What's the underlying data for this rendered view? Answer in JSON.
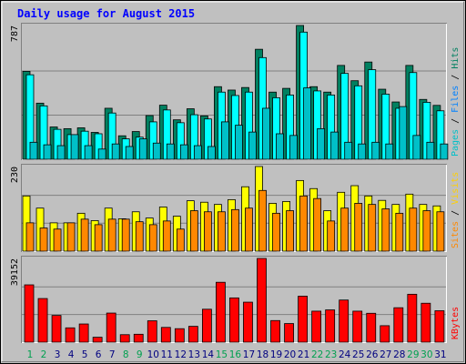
{
  "title": "Daily usage for August 2015",
  "colors": {
    "background": "#c0c0c0",
    "pages": "#00c0c8",
    "files": "#00ffff",
    "hits": "#008060",
    "visits": "#ffff00",
    "sites": "#ff8800",
    "kbytes": "#ff0000",
    "title": "#0000ff",
    "weekend_day": "#00a050",
    "weekday_day": "#000080"
  },
  "legend": {
    "panel1": [
      "Pages",
      "Files",
      "Hits"
    ],
    "panel2": [
      "Sites",
      "Visits"
    ],
    "panel3": [
      "KBytes"
    ]
  },
  "chart_data": [
    {
      "type": "bar",
      "panel": "hits-files-pages",
      "max_label": "787",
      "ylim": [
        0,
        787
      ],
      "grid": true,
      "categories": [
        "1",
        "2",
        "3",
        "4",
        "5",
        "6",
        "7",
        "8",
        "9",
        "10",
        "11",
        "12",
        "13",
        "14",
        "15",
        "16",
        "17",
        "18",
        "19",
        "20",
        "21",
        "22",
        "23",
        "24",
        "25",
        "26",
        "27",
        "28",
        "29",
        "30",
        "31"
      ],
      "series": [
        {
          "name": "Hits",
          "values": [
            517,
            330,
            190,
            180,
            185,
            158,
            300,
            138,
            163,
            257,
            318,
            232,
            297,
            255,
            427,
            407,
            422,
            647,
            395,
            417,
            787,
            427,
            395,
            552,
            462,
            572,
            412,
            337,
            552,
            352,
            317
          ]
        },
        {
          "name": "Files",
          "values": [
            497,
            314,
            176,
            145,
            165,
            150,
            272,
            120,
            130,
            220,
            290,
            215,
            262,
            237,
            395,
            375,
            395,
            598,
            362,
            378,
            748,
            402,
            378,
            505,
            432,
            527,
            383,
            300,
            510,
            335,
            285
          ]
        },
        {
          "name": "Pages",
          "values": [
            100,
            85,
            80,
            145,
            80,
            60,
            90,
            75,
            120,
            95,
            90,
            85,
            80,
            75,
            220,
            200,
            160,
            300,
            150,
            140,
            420,
            180,
            160,
            100,
            90,
            100,
            90,
            310,
            140,
            100,
            90
          ]
        }
      ]
    },
    {
      "type": "bar",
      "panel": "visits-sites",
      "max_label": "230",
      "ylim": [
        0,
        230
      ],
      "grid": true,
      "categories": [
        "1",
        "2",
        "3",
        "4",
        "5",
        "6",
        "7",
        "8",
        "9",
        "10",
        "11",
        "12",
        "13",
        "14",
        "15",
        "16",
        "17",
        "18",
        "19",
        "20",
        "21",
        "22",
        "23",
        "24",
        "25",
        "26",
        "27",
        "28",
        "29",
        "30",
        "31"
      ],
      "series": [
        {
          "name": "Visits",
          "values": [
            150,
            117,
            77,
            77,
            103,
            83,
            117,
            88,
            107,
            90,
            120,
            95,
            137,
            133,
            127,
            140,
            175,
            230,
            130,
            135,
            192,
            170,
            110,
            160,
            178,
            150,
            138,
            127,
            155,
            127,
            123
          ]
        },
        {
          "name": "Sites",
          "values": [
            77,
            63,
            60,
            77,
            87,
            72,
            87,
            87,
            80,
            72,
            82,
            60,
            110,
            107,
            107,
            113,
            117,
            165,
            103,
            110,
            150,
            143,
            82,
            117,
            130,
            127,
            115,
            103,
            117,
            110,
            107
          ]
        }
      ]
    },
    {
      "type": "bar",
      "panel": "kbytes",
      "max_label": "39152",
      "ylim": [
        0,
        39152
      ],
      "grid": true,
      "categories": [
        "1",
        "2",
        "3",
        "4",
        "5",
        "6",
        "7",
        "8",
        "9",
        "10",
        "11",
        "12",
        "13",
        "14",
        "15",
        "16",
        "17",
        "18",
        "19",
        "20",
        "21",
        "22",
        "23",
        "24",
        "25",
        "26",
        "27",
        "28",
        "29",
        "30",
        "31"
      ],
      "series": [
        {
          "name": "KBytes",
          "values": [
            26800,
            20400,
            12500,
            6700,
            8500,
            2300,
            13600,
            3500,
            3700,
            10000,
            6900,
            6300,
            7400,
            15400,
            28000,
            20700,
            18700,
            39152,
            10100,
            8700,
            21500,
            14500,
            15100,
            19700,
            14500,
            13500,
            7700,
            16100,
            22400,
            18200,
            14700
          ]
        }
      ]
    }
  ]
}
